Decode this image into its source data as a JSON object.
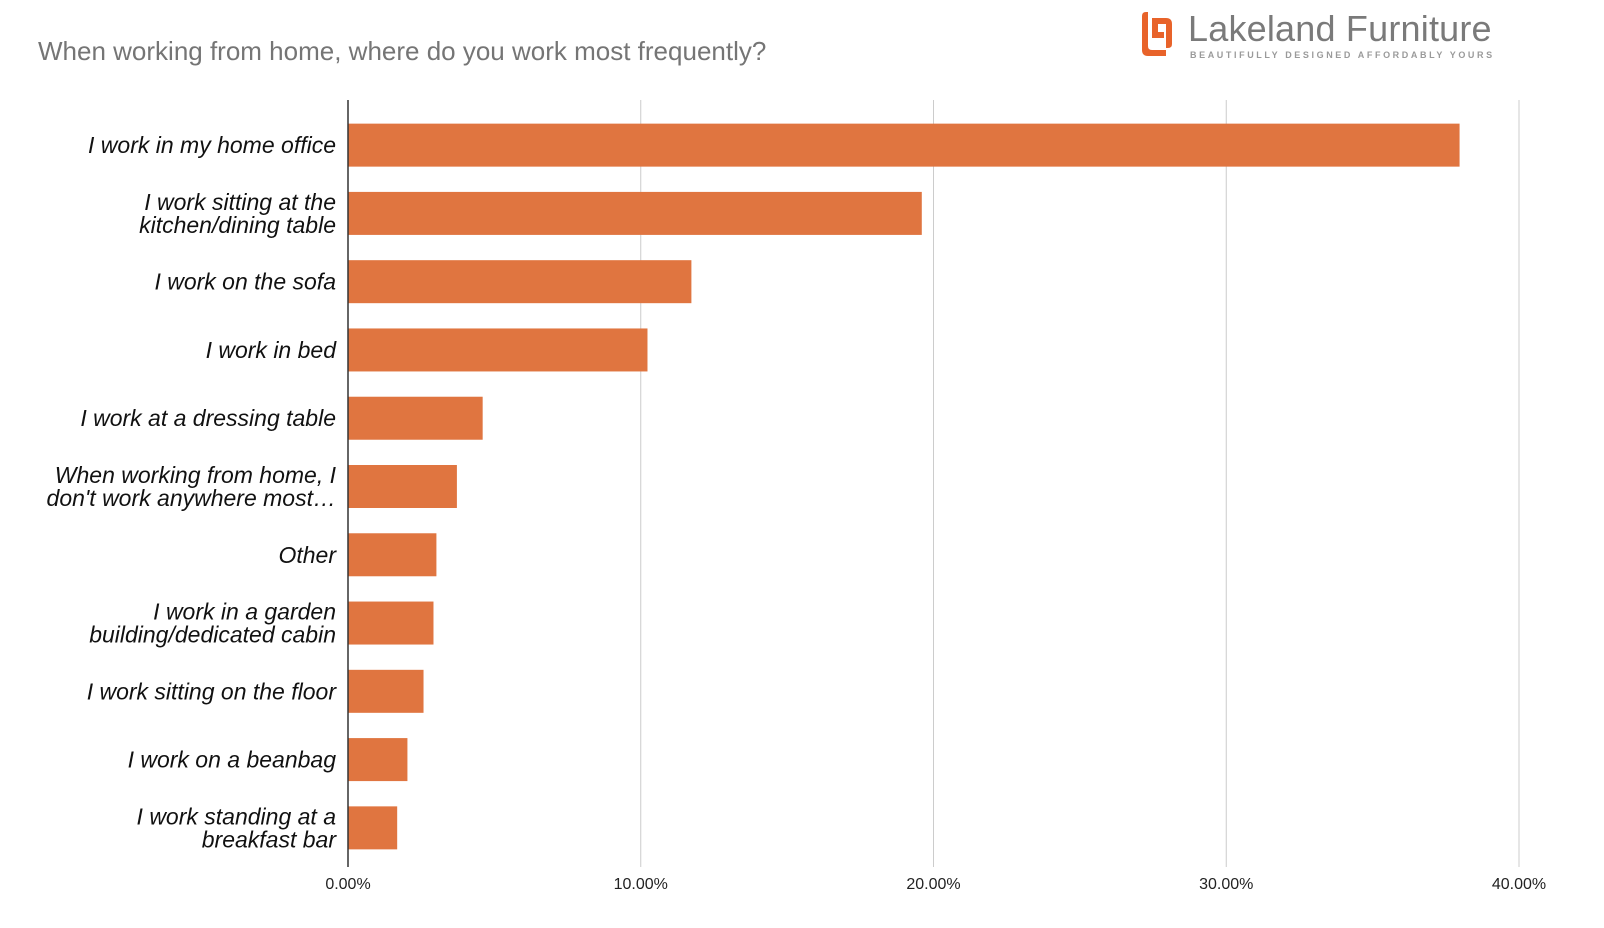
{
  "title": "When working from home, where do you work most frequently?",
  "brand": {
    "name": "Lakeland Furniture",
    "tagline": "BEAUTIFULLY DESIGNED AFFORDABLY YOURS",
    "logo_icon": "lakeland-logo-icon",
    "color": "#e8632a"
  },
  "colors": {
    "bar": "#e07540",
    "grid": "#cccccc",
    "axis": "#333333"
  },
  "chart_data": {
    "type": "bar",
    "orientation": "horizontal",
    "title": "When working from home, where do you work most frequently?",
    "xlabel": "",
    "ylabel": "",
    "xlim": [
      0,
      40
    ],
    "ticks": [
      "0.00%",
      "10.00%",
      "20.00%",
      "30.00%",
      "40.00%"
    ],
    "tick_values": [
      0,
      10,
      20,
      30,
      40
    ],
    "grid": true,
    "categories": [
      [
        "I work in my home office"
      ],
      [
        "I work sitting at the",
        "kitchen/dining table"
      ],
      [
        "I work on the sofa"
      ],
      [
        "I work in bed"
      ],
      [
        "I work at a dressing table"
      ],
      [
        "When working from home, I",
        "don't work anywhere most…"
      ],
      [
        "Other"
      ],
      [
        "I work in a garden",
        "building/dedicated cabin"
      ],
      [
        "I work sitting on the floor"
      ],
      [
        "I work on a beanbag"
      ],
      [
        "I work standing at a",
        "breakfast bar"
      ]
    ],
    "values": [
      37.97,
      19.6,
      11.73,
      10.23,
      4.6,
      3.72,
      3.02,
      2.92,
      2.58,
      2.03,
      1.68
    ]
  }
}
